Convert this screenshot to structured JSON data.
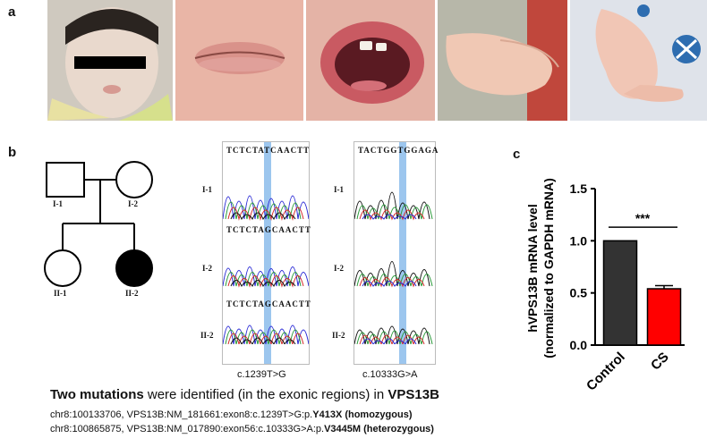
{
  "panels": {
    "a": "a",
    "b": "b",
    "c": "c"
  },
  "pedigree": {
    "labels": [
      "I-1",
      "I-2",
      "II-1",
      "II-2"
    ]
  },
  "chromatograms": [
    {
      "top_sequence": "TCTCTATCAACTT",
      "mid_sequence": "TCTCTAGCAACTT",
      "bottom_sequence": "TCTCTAGCAACTT",
      "row_labels": [
        "I-1",
        "I-2",
        "II-2"
      ],
      "mutation": "c.1239T>G"
    },
    {
      "top_sequence": "TACTGGTGGAGA",
      "row_labels": [
        "I-1",
        "I-2",
        "II-2"
      ],
      "mutation": "c.10333G>A"
    }
  ],
  "chart_data": {
    "type": "bar",
    "categories": [
      "Control",
      "CS"
    ],
    "values": [
      1.0,
      0.54
    ],
    "errors": [
      0,
      0.03
    ],
    "ylabel": "hVPS13B mRNA level (normalized to GAPDH mRNA)",
    "ylim": [
      0.0,
      1.5
    ],
    "yticks": [
      "0.0",
      "0.5",
      "1.0",
      "1.5"
    ],
    "significance": "***",
    "colors": [
      "#333333",
      "#ff0000"
    ]
  },
  "caption": {
    "head_bold": "Two mutations",
    "head_mid": " were identified (in the exonic regions) in ",
    "head_gene": "VPS13B",
    "line1_prefix": "chr8:100133706,  VPS13B:NM_181661:exon8:c.1239T>G:p.",
    "line1_bold": "Y413X (homozygous)",
    "line2_prefix": "chr8:100865875,  VPS13B:NM_017890:exon56:c.10333G>A:p.",
    "line2_bold": "V3445M (heterozygous)"
  }
}
